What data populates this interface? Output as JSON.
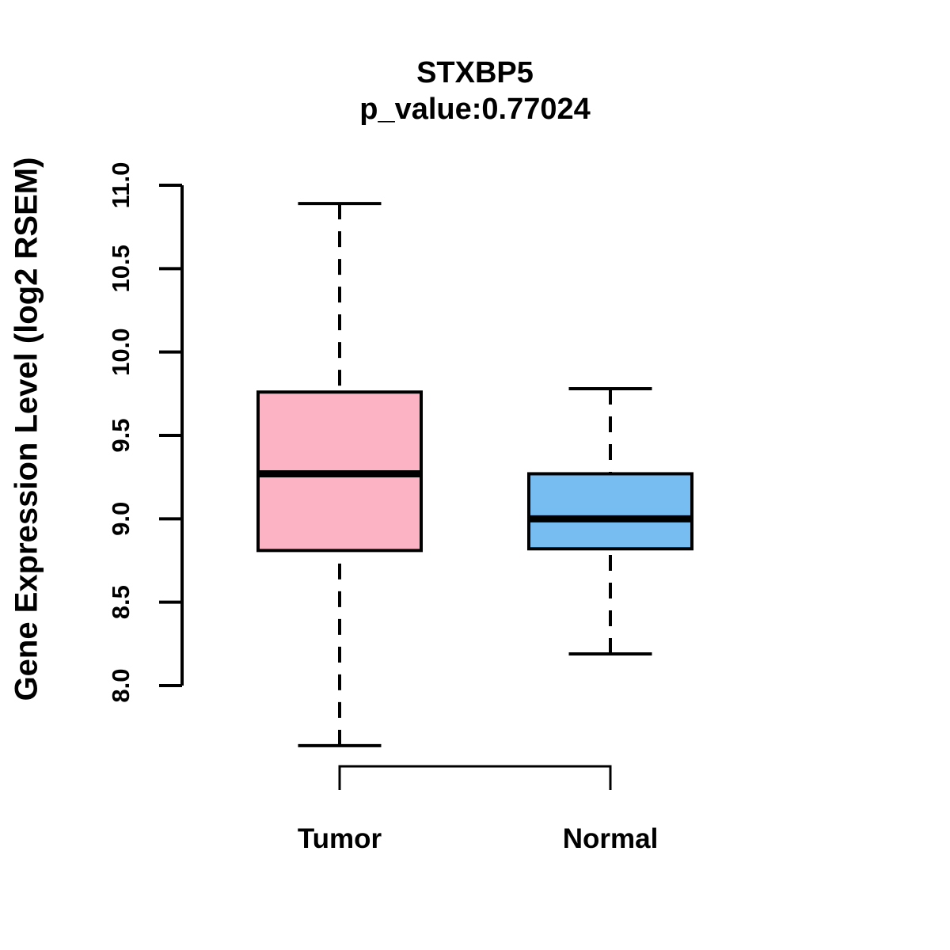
{
  "chart_data": {
    "type": "boxplot",
    "title": "STXBP5",
    "subtitle": "p_value:0.77024",
    "gene": "STXBP5",
    "p_value": 0.77024,
    "ylabel": "Gene Expression Level (log2 RSEM)",
    "ylim": [
      8.0,
      11.0
    ],
    "yticks": [
      "8.0",
      "8.5",
      "9.0",
      "9.5",
      "10.0",
      "10.5",
      "11.0"
    ],
    "categories": [
      "Tumor",
      "Normal"
    ],
    "grid": false,
    "legend": false,
    "axis_color": "#000000",
    "series": [
      {
        "name": "Tumor",
        "fill": "#FCB3C3",
        "stats": {
          "whisker_low": 7.64,
          "q1": 8.81,
          "median": 9.27,
          "q3": 9.76,
          "whisker_high": 10.89
        }
      },
      {
        "name": "Normal",
        "fill": "#77BDF2",
        "stats": {
          "whisker_low": 8.19,
          "q1": 8.82,
          "median": 9.0,
          "q3": 9.27,
          "whisker_high": 9.78
        }
      }
    ]
  }
}
